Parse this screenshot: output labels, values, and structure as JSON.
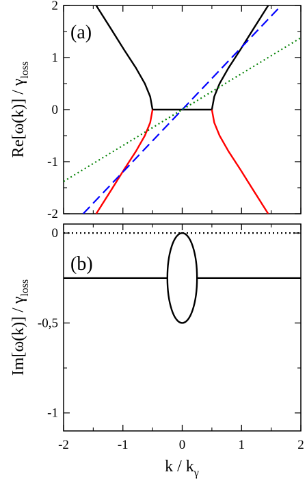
{
  "chart_data": [
    {
      "type": "line",
      "panel_label": "(a)",
      "ylabel": {
        "main": "Re[ω(k)] / γ",
        "sub": "loss"
      },
      "xlim": [
        -2,
        2
      ],
      "ylim": [
        -2,
        2
      ],
      "x_ticks": [
        -2,
        -1,
        0,
        1,
        2
      ],
      "y_ticks": [
        -2,
        -1,
        0,
        1,
        2
      ],
      "y_tick_labels": [
        "-2",
        "-1",
        "0",
        "1",
        "2"
      ],
      "grid": false,
      "series": [
        {
          "style": "solid",
          "color": "#000000",
          "points": [
            [
              -1.45,
              2.0
            ],
            [
              -1.2,
              1.55
            ],
            [
              -0.98,
              1.15
            ],
            [
              -0.78,
              0.8
            ],
            [
              -0.63,
              0.5
            ],
            [
              -0.54,
              0.25
            ],
            [
              -0.5,
              0.0
            ]
          ]
        },
        {
          "style": "solid",
          "color": "#000000",
          "points": [
            [
              0.5,
              0.0
            ],
            [
              0.54,
              0.25
            ],
            [
              0.63,
              0.5
            ],
            [
              0.78,
              0.8
            ],
            [
              0.98,
              1.15
            ],
            [
              1.2,
              1.55
            ],
            [
              1.45,
              2.0
            ]
          ]
        },
        {
          "style": "solid",
          "color": "#000000",
          "points": [
            [
              -0.5,
              0.0
            ],
            [
              0.5,
              0.0
            ]
          ]
        },
        {
          "style": "solid",
          "color": "#ff0000",
          "points": [
            [
              -0.5,
              0.0
            ],
            [
              -0.54,
              -0.25
            ],
            [
              -0.63,
              -0.5
            ],
            [
              -0.78,
              -0.8
            ],
            [
              -0.98,
              -1.15
            ],
            [
              -1.2,
              -1.55
            ],
            [
              -1.45,
              -2.0
            ]
          ]
        },
        {
          "style": "solid",
          "color": "#ff0000",
          "points": [
            [
              0.5,
              0.0
            ],
            [
              0.54,
              -0.25
            ],
            [
              0.63,
              -0.5
            ],
            [
              0.78,
              -0.8
            ],
            [
              0.98,
              -1.15
            ],
            [
              1.2,
              -1.55
            ],
            [
              1.45,
              -2.0
            ]
          ]
        },
        {
          "style": "dashed",
          "color": "#0000ff",
          "points": [
            [
              -1.67,
              -2.0
            ],
            [
              1.67,
              2.0
            ]
          ]
        },
        {
          "style": "dotted",
          "color": "#008000",
          "points": [
            [
              -2.0,
              -1.38
            ],
            [
              2.0,
              1.38
            ]
          ]
        }
      ]
    },
    {
      "type": "line",
      "panel_label": "(b)",
      "ylabel": {
        "main": "Im[ω(k)] / γ",
        "sub": "loss"
      },
      "xlabel": {
        "main": "k / k",
        "sub": "γ"
      },
      "xlim": [
        -2,
        2
      ],
      "ylim": [
        -1.1,
        0.05
      ],
      "x_ticks": [
        -2,
        -1,
        0,
        1,
        2
      ],
      "x_tick_labels": [
        "-2",
        "-1",
        "0",
        "1",
        "2"
      ],
      "y_ticks": [
        0,
        -0.5,
        -1
      ],
      "y_tick_labels": [
        "0",
        "-0,5",
        "-1"
      ],
      "grid": false,
      "series": [
        {
          "style": "solid",
          "color": "#000000",
          "points": [
            [
              -2.0,
              -0.25
            ],
            [
              -0.24,
              -0.25
            ]
          ]
        },
        {
          "style": "solid",
          "color": "#000000",
          "points": [
            [
              0.24,
              -0.25
            ],
            [
              2.0,
              -0.25
            ]
          ]
        },
        {
          "style": "solid",
          "color": "#000000",
          "shape": "ellipse",
          "center": [
            0.0,
            -0.25
          ],
          "radius": [
            0.25,
            0.25
          ]
        },
        {
          "style": "dotted",
          "color": "#000000",
          "points": [
            [
              -2.0,
              0.0
            ],
            [
              2.0,
              0.0
            ]
          ]
        }
      ]
    }
  ]
}
